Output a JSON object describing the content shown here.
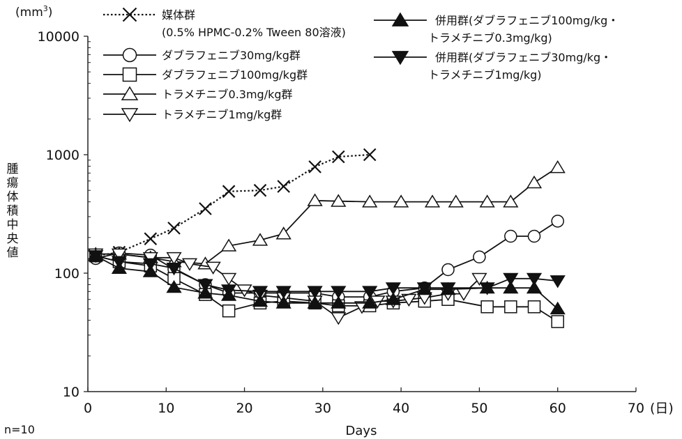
{
  "chart_data": {
    "type": "line",
    "title": "",
    "xlabel": "Days",
    "ylabel": "腫瘍体積中央値",
    "y_unit_base": "(mm",
    "y_unit_sup": "3",
    "y_unit_close": ")",
    "x_unit": "(日)",
    "n_label": "n=10",
    "xlim": [
      0,
      70
    ],
    "ylim": [
      10,
      10000
    ],
    "yscale": "log",
    "x_ticks": [
      0,
      10,
      20,
      30,
      40,
      50,
      60,
      70
    ],
    "x_tick_labels": [
      "0",
      "10",
      "20",
      "30",
      "40",
      "50",
      "60",
      "70"
    ],
    "y_ticks": [
      10,
      100,
      1000,
      10000
    ],
    "y_tick_labels": [
      "10",
      "100",
      "1000",
      "10000"
    ],
    "grid": false,
    "legend_position": "top",
    "series": [
      {
        "name": "媒体群",
        "name_line2": "(0.5% HPMC-0.2% Tween 80溶液)",
        "marker": "x",
        "dashed": true,
        "x": [
          1,
          4,
          8,
          11,
          15,
          18,
          22,
          25,
          29,
          32,
          36
        ],
        "y": [
          140,
          150,
          195,
          240,
          350,
          490,
          500,
          540,
          790,
          960,
          1000
        ]
      },
      {
        "name": "ダブラフェニブ30mg/kg群",
        "marker": "circle-open",
        "dashed": false,
        "x": [
          1,
          4,
          8,
          11,
          15,
          18,
          22,
          25,
          29,
          32,
          36,
          39,
          43,
          46,
          50,
          54,
          57,
          60
        ],
        "y": [
          133,
          148,
          142,
          108,
          80,
          68,
          68,
          68,
          68,
          63,
          63,
          70,
          75,
          107,
          137,
          205,
          205,
          275
        ]
      },
      {
        "name": "ダブラフェニブ100mg/kg群",
        "marker": "square-open",
        "dashed": false,
        "x": [
          1,
          4,
          8,
          11,
          15,
          18,
          22,
          25,
          29,
          32,
          36,
          39,
          43,
          46,
          51,
          54,
          57,
          60
        ],
        "y": [
          140,
          125,
          115,
          90,
          66,
          48,
          56,
          58,
          56,
          53,
          53,
          56,
          58,
          60,
          52,
          52,
          52,
          39
        ]
      },
      {
        "name": "トラメチニブ0.3mg/kg群",
        "marker": "triangle-up-open",
        "dashed": false,
        "x": [
          1,
          4,
          8,
          11,
          15,
          18,
          22,
          25,
          29,
          32,
          36,
          40,
          44,
          47,
          51,
          54,
          57,
          60
        ],
        "y": [
          145,
          145,
          135,
          125,
          120,
          170,
          190,
          215,
          410,
          405,
          400,
          400,
          400,
          400,
          400,
          400,
          580,
          780
        ]
      },
      {
        "name": "トラメチニブ1mg/kg群",
        "marker": "triangle-down-open",
        "dashed": false,
        "x": [
          1,
          4,
          8,
          11,
          13,
          16,
          18,
          20,
          22,
          25,
          29,
          32,
          35,
          37,
          39,
          41,
          43,
          46,
          48,
          50
        ],
        "y": [
          145,
          145,
          135,
          135,
          120,
          112,
          90,
          72,
          65,
          62,
          58,
          42,
          52,
          58,
          58,
          60,
          62,
          67,
          67,
          90
        ]
      },
      {
        "name": "併用群(ダブラフェニブ100mg/kg・",
        "name_line2": "トラメチニブ0.3mg/kg)",
        "marker": "triangle-up-filled",
        "dashed": false,
        "x": [
          1,
          4,
          8,
          11,
          15,
          18,
          22,
          25,
          29,
          32,
          36,
          39,
          43,
          46,
          51,
          54,
          57,
          60
        ],
        "y": [
          140,
          110,
          103,
          76,
          68,
          65,
          58,
          56,
          56,
          56,
          56,
          60,
          73,
          73,
          75,
          75,
          75,
          50
        ]
      },
      {
        "name": "併用群(ダブラフェニブ30mg/kg・",
        "name_line2": "トラメチニブ1mg/kg)",
        "marker": "triangle-down-filled",
        "dashed": false,
        "x": [
          1,
          4,
          8,
          11,
          15,
          18,
          22,
          25,
          29,
          32,
          36,
          39,
          43,
          46,
          51,
          54,
          57,
          60
        ],
        "y": [
          140,
          125,
          120,
          110,
          80,
          72,
          70,
          70,
          70,
          70,
          70,
          75,
          75,
          75,
          75,
          90,
          90,
          86
        ]
      }
    ]
  }
}
